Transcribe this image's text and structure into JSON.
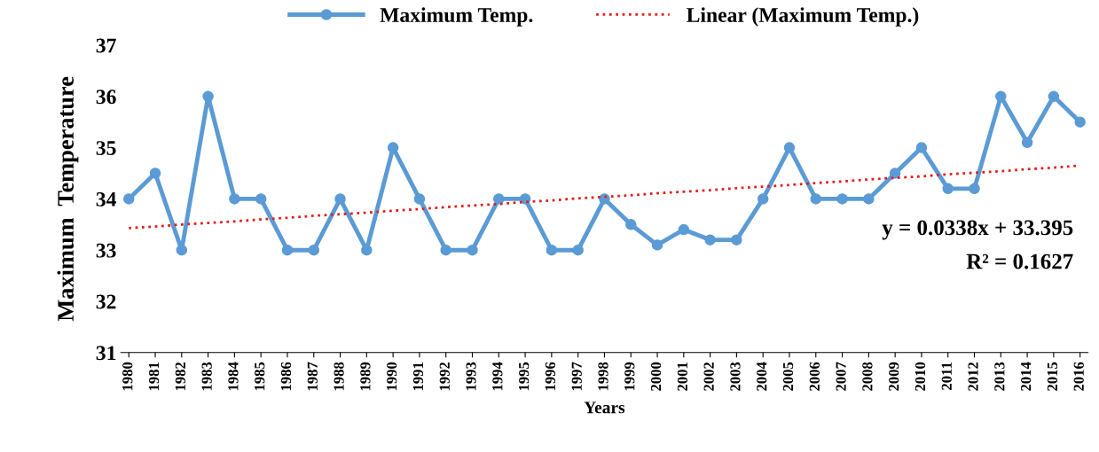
{
  "chart_data": {
    "type": "line",
    "xlabel": "Years",
    "ylabel": "Maximum  Temperature",
    "categories": [
      "1980",
      "1981",
      "1982",
      "1983",
      "1984",
      "1985",
      "1986",
      "1987",
      "1988",
      "1989",
      "1990",
      "1991",
      "1992",
      "1993",
      "1994",
      "1995",
      "1996",
      "1997",
      "1998",
      "1999",
      "2000",
      "2001",
      "2002",
      "2003",
      "2004",
      "2005",
      "2006",
      "2007",
      "2008",
      "2009",
      "2010",
      "2011",
      "2012",
      "2013",
      "2014",
      "2015",
      "2016"
    ],
    "series": [
      {
        "name": "Maximum Temp.",
        "color": "#5b9bd5",
        "marker": "circle",
        "line_style": "solid",
        "values": [
          34,
          34.5,
          33,
          36,
          34,
          34,
          33,
          33,
          34,
          33,
          35,
          34,
          33,
          33,
          34,
          34,
          33,
          33,
          34,
          33.5,
          33.1,
          33.4,
          33.2,
          33.2,
          34,
          35,
          34,
          34,
          34,
          34.5,
          35,
          34.2,
          34.2,
          36,
          35.1,
          36,
          35.5
        ]
      },
      {
        "name": "Linear (Maximum Temp.)",
        "color": "#e02020",
        "marker": "none",
        "line_style": "dotted",
        "values": [
          33.43,
          33.46,
          33.5,
          33.53,
          33.56,
          33.6,
          33.63,
          33.67,
          33.7,
          33.73,
          33.77,
          33.8,
          33.84,
          33.87,
          33.9,
          33.94,
          33.97,
          34.01,
          34.04,
          34.07,
          34.11,
          34.14,
          34.17,
          34.21,
          34.24,
          34.27,
          34.31,
          34.34,
          34.38,
          34.41,
          34.44,
          34.48,
          34.51,
          34.54,
          34.58,
          34.61,
          34.65
        ]
      }
    ],
    "annotations": [
      "y = 0.0338x + 33.395",
      "R² = 0.1627"
    ],
    "ylim": [
      31,
      37
    ],
    "yticks": [
      31,
      32,
      33,
      34,
      35,
      36,
      37
    ],
    "grid": false,
    "legend": "top"
  }
}
